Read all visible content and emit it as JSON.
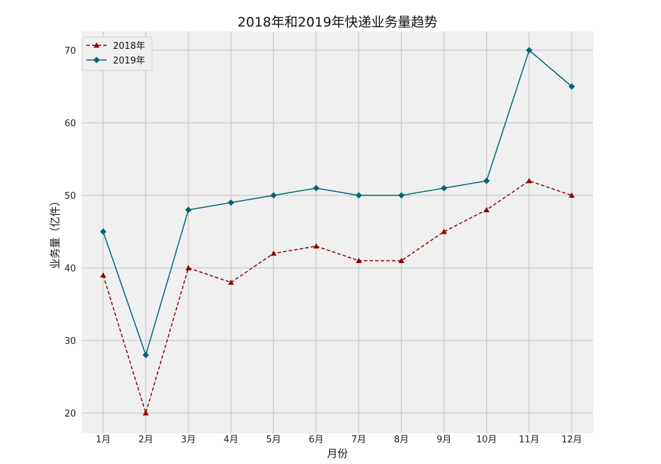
{
  "chart_data": {
    "type": "line",
    "title": "2018年和2019年快递业务量趋势",
    "xlabel": "月份",
    "ylabel": "业务量（亿件）",
    "categories": [
      "1月",
      "2月",
      "3月",
      "4月",
      "5月",
      "6月",
      "7月",
      "8月",
      "9月",
      "10月",
      "11月",
      "12月"
    ],
    "ylim": [
      18,
      72.5
    ],
    "yticks": [
      20,
      30,
      40,
      50,
      60,
      70
    ],
    "grid": true,
    "legend_position": "top-left",
    "series": [
      {
        "name": "2018年",
        "values": [
          39,
          20,
          40,
          38,
          42,
          43,
          41,
          41,
          45,
          48,
          52,
          50
        ],
        "color": "#8b0000",
        "line_style": "dashed",
        "marker": "triangle"
      },
      {
        "name": "2019年",
        "values": [
          45,
          28,
          48,
          49,
          50,
          51,
          50,
          50,
          51,
          52,
          70,
          65
        ],
        "color": "#006374",
        "line_style": "solid",
        "marker": "diamond"
      }
    ]
  }
}
